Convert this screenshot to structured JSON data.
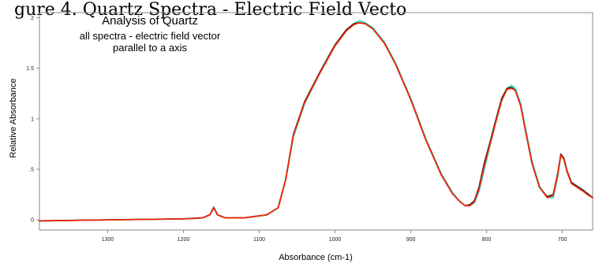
{
  "header": {
    "cut_caption": "gure 4. Quartz Spectra - Electric Field Vecto"
  },
  "chart_data": {
    "type": "line",
    "title": "Analysis of Quartz",
    "subtitle": [
      "all spectra - electric field vector",
      "parallel to a axis"
    ],
    "xlabel": "Absorbance (cm-1)",
    "ylabel": "Relative Absorbance",
    "xlim": [
      1390,
      660
    ],
    "ylim": [
      -0.1,
      2.05
    ],
    "x_reversed": true,
    "grid": false,
    "xticks": [
      1300,
      1200,
      1100,
      1000,
      900,
      800,
      700
    ],
    "xtick_labels": [
      "1300",
      "1200",
      "1100",
      "1000",
      "900",
      "800",
      "700"
    ],
    "yticks": [
      0,
      0.5,
      1,
      1.5,
      2
    ],
    "ytick_labels": [
      "0",
      ".5",
      "1",
      "1.5",
      "2"
    ],
    "series": [
      {
        "color": "#35dfc9",
        "x": [
          1390,
          1300,
          1200,
          1175,
          1165,
          1160,
          1155,
          1145,
          1120,
          1090,
          1075,
          1065,
          1055,
          1040,
          1020,
          1000,
          985,
          975,
          968,
          960,
          950,
          935,
          920,
          900,
          880,
          860,
          845,
          835,
          828,
          822,
          816,
          810,
          803,
          796,
          788,
          780,
          773,
          767,
          762,
          755,
          748,
          740,
          730,
          720,
          712,
          706,
          702,
          698,
          694,
          688,
          680,
          672,
          665,
          660
        ],
        "y": [
          -0.01,
          0,
          0.01,
          0.02,
          0.05,
          0.13,
          0.05,
          0.02,
          0.02,
          0.05,
          0.12,
          0.4,
          0.82,
          1.15,
          1.45,
          1.72,
          1.87,
          1.94,
          1.97,
          1.95,
          1.9,
          1.76,
          1.55,
          1.2,
          0.8,
          0.46,
          0.27,
          0.18,
          0.14,
          0.14,
          0.17,
          0.28,
          0.5,
          0.72,
          0.96,
          1.18,
          1.3,
          1.33,
          1.3,
          1.15,
          0.88,
          0.58,
          0.33,
          0.22,
          0.22,
          0.43,
          0.64,
          0.6,
          0.48,
          0.36,
          0.32,
          0.28,
          0.24,
          0.22
        ]
      },
      {
        "color": "#2a2a2a",
        "x": [
          1390,
          1300,
          1200,
          1175,
          1165,
          1160,
          1155,
          1145,
          1120,
          1090,
          1075,
          1065,
          1055,
          1040,
          1020,
          1000,
          985,
          975,
          968,
          960,
          950,
          935,
          920,
          900,
          880,
          860,
          845,
          835,
          828,
          822,
          816,
          810,
          803,
          796,
          788,
          780,
          773,
          767,
          762,
          755,
          748,
          740,
          730,
          720,
          712,
          706,
          702,
          698,
          694,
          688,
          680,
          672,
          665,
          660
        ],
        "y": [
          -0.01,
          0,
          0.01,
          0.02,
          0.05,
          0.12,
          0.05,
          0.02,
          0.02,
          0.05,
          0.12,
          0.4,
          0.84,
          1.17,
          1.46,
          1.73,
          1.88,
          1.94,
          1.95,
          1.94,
          1.89,
          1.75,
          1.54,
          1.19,
          0.79,
          0.45,
          0.26,
          0.18,
          0.14,
          0.15,
          0.19,
          0.32,
          0.56,
          0.75,
          0.98,
          1.2,
          1.3,
          1.31,
          1.28,
          1.13,
          0.86,
          0.56,
          0.32,
          0.23,
          0.25,
          0.46,
          0.65,
          0.61,
          0.49,
          0.37,
          0.33,
          0.29,
          0.25,
          0.22
        ]
      },
      {
        "color": "#ff2200",
        "x": [
          1390,
          1300,
          1200,
          1175,
          1165,
          1160,
          1155,
          1145,
          1120,
          1090,
          1075,
          1065,
          1055,
          1040,
          1020,
          1000,
          985,
          975,
          968,
          960,
          950,
          935,
          920,
          900,
          880,
          860,
          845,
          835,
          828,
          822,
          816,
          810,
          803,
          796,
          788,
          780,
          773,
          767,
          762,
          755,
          748,
          740,
          730,
          720,
          712,
          706,
          702,
          698,
          694,
          688,
          680,
          672,
          665,
          660
        ],
        "y": [
          -0.01,
          0,
          0.01,
          0.02,
          0.05,
          0.12,
          0.05,
          0.02,
          0.02,
          0.05,
          0.12,
          0.4,
          0.83,
          1.16,
          1.45,
          1.72,
          1.87,
          1.93,
          1.95,
          1.94,
          1.89,
          1.75,
          1.54,
          1.19,
          0.79,
          0.45,
          0.26,
          0.18,
          0.14,
          0.14,
          0.18,
          0.3,
          0.53,
          0.73,
          0.96,
          1.18,
          1.29,
          1.3,
          1.28,
          1.13,
          0.86,
          0.56,
          0.32,
          0.22,
          0.24,
          0.45,
          0.64,
          0.6,
          0.48,
          0.36,
          0.32,
          0.28,
          0.24,
          0.22
        ]
      }
    ]
  }
}
